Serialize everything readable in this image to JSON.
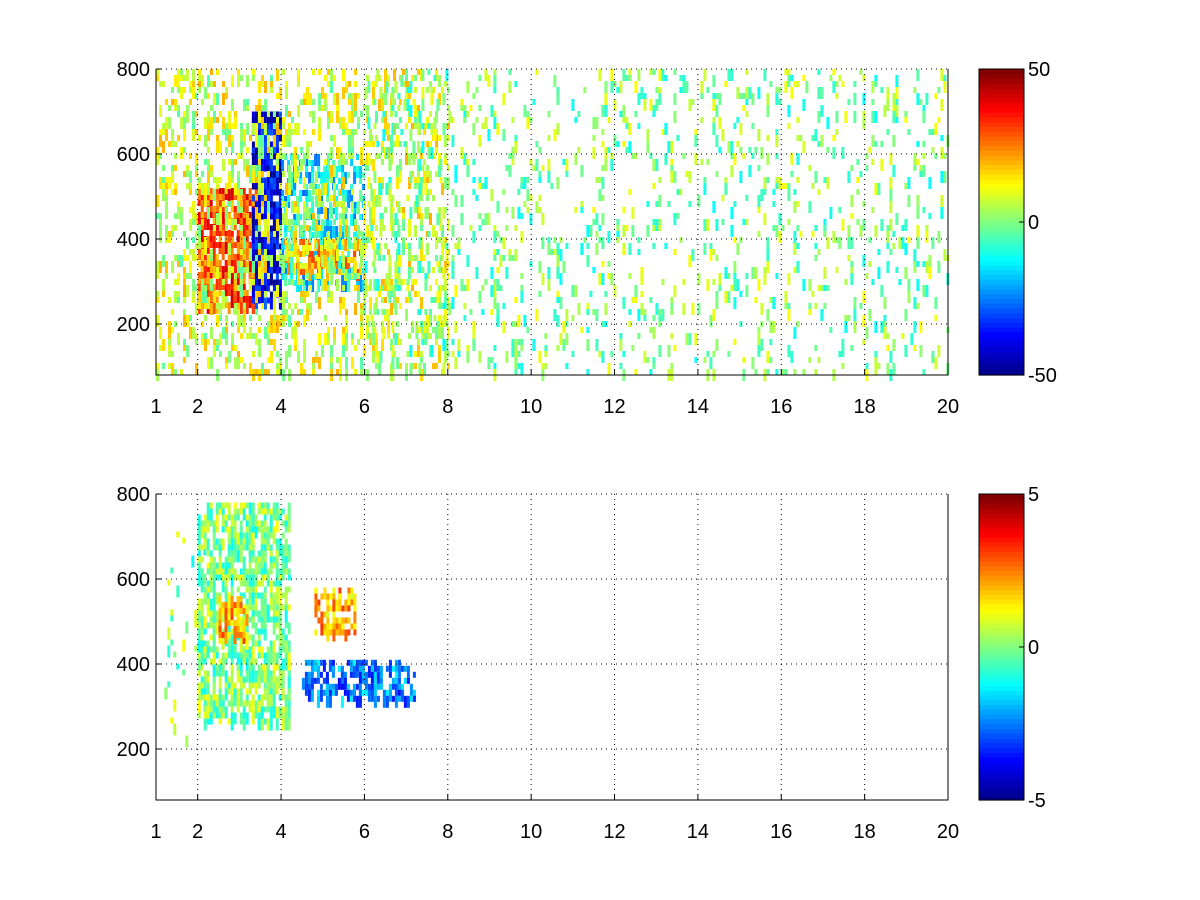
{
  "colormap": "jet",
  "colors": {
    "jet": [
      "#00008f",
      "#0000ff",
      "#0080ff",
      "#00ffff",
      "#80ff80",
      "#ffff00",
      "#ff8000",
      "#ff0000",
      "#800000"
    ],
    "background": "#ffffff",
    "grid": "#000000"
  },
  "chart_data": [
    {
      "type": "heatmap",
      "title": "",
      "xlabel": "",
      "ylabel": "",
      "xlim": [
        1,
        20
      ],
      "ylim": [
        80,
        800
      ],
      "xticks": [
        1,
        2,
        4,
        6,
        8,
        10,
        12,
        14,
        16,
        18,
        20
      ],
      "xtick_labels": [
        "1",
        "2",
        "4",
        "6",
        "8",
        "10",
        "12",
        "14",
        "16",
        "18",
        "20"
      ],
      "yticks": [
        200,
        400,
        600,
        800
      ],
      "ytick_labels": [
        "200",
        "400",
        "600",
        "800"
      ],
      "grid": "dotted",
      "colorbar": {
        "clim": [
          -50,
          50
        ],
        "tick_values": [
          -50,
          0,
          50
        ],
        "tick_labels": [
          "-50",
          "0",
          "50"
        ],
        "colormap": "jet"
      },
      "features": [
        {
          "x": [
            2.0,
            3.4
          ],
          "y": [
            250,
            520
          ],
          "value": 30,
          "density": 0.75
        },
        {
          "x": [
            3.3,
            4.0
          ],
          "y": [
            250,
            700
          ],
          "value": -40,
          "density": 0.8
        },
        {
          "x": [
            4.0,
            6.0
          ],
          "y": [
            300,
            600
          ],
          "value": -15,
          "density": 0.45
        },
        {
          "x": [
            4.0,
            6.0
          ],
          "y": [
            320,
            400
          ],
          "value": 20,
          "density": 0.5
        },
        {
          "x": [
            1.0,
            8.0
          ],
          "y": [
            80,
            800
          ],
          "value": 8,
          "density": 0.25
        },
        {
          "x": [
            6.0,
            20.0
          ],
          "y": [
            80,
            800
          ],
          "value": 0,
          "density": 0.12
        }
      ]
    },
    {
      "type": "heatmap",
      "title": "",
      "xlabel": "",
      "ylabel": "",
      "xlim": [
        1,
        20
      ],
      "ylim": [
        80,
        800
      ],
      "xticks": [
        1,
        2,
        4,
        6,
        8,
        10,
        12,
        14,
        16,
        18,
        20
      ],
      "xtick_labels": [
        "1",
        "2",
        "4",
        "6",
        "8",
        "10",
        "12",
        "14",
        "16",
        "18",
        "20"
      ],
      "yticks": [
        200,
        400,
        600,
        800
      ],
      "ytick_labels": [
        "200",
        "400",
        "600",
        "800"
      ],
      "grid": "dotted",
      "colorbar": {
        "clim": [
          -5,
          5
        ],
        "tick_values": [
          -5,
          0,
          5
        ],
        "tick_labels": [
          "-5",
          "0",
          "5"
        ],
        "colormap": "jet"
      },
      "features": [
        {
          "x": [
            2.0,
            4.2
          ],
          "y": [
            260,
            780
          ],
          "value": 0,
          "density": 0.6
        },
        {
          "x": [
            2.5,
            3.2
          ],
          "y": [
            450,
            560
          ],
          "value": 2,
          "density": 0.6
        },
        {
          "x": [
            4.8,
            5.8
          ],
          "y": [
            480,
            580
          ],
          "value": 2,
          "density": 0.6
        },
        {
          "x": [
            4.5,
            7.2
          ],
          "y": [
            320,
            410
          ],
          "value": -2.5,
          "density": 0.5
        },
        {
          "x": [
            1.2,
            2.2
          ],
          "y": [
            200,
            740
          ],
          "value": 0,
          "density": 0.05
        }
      ]
    }
  ]
}
